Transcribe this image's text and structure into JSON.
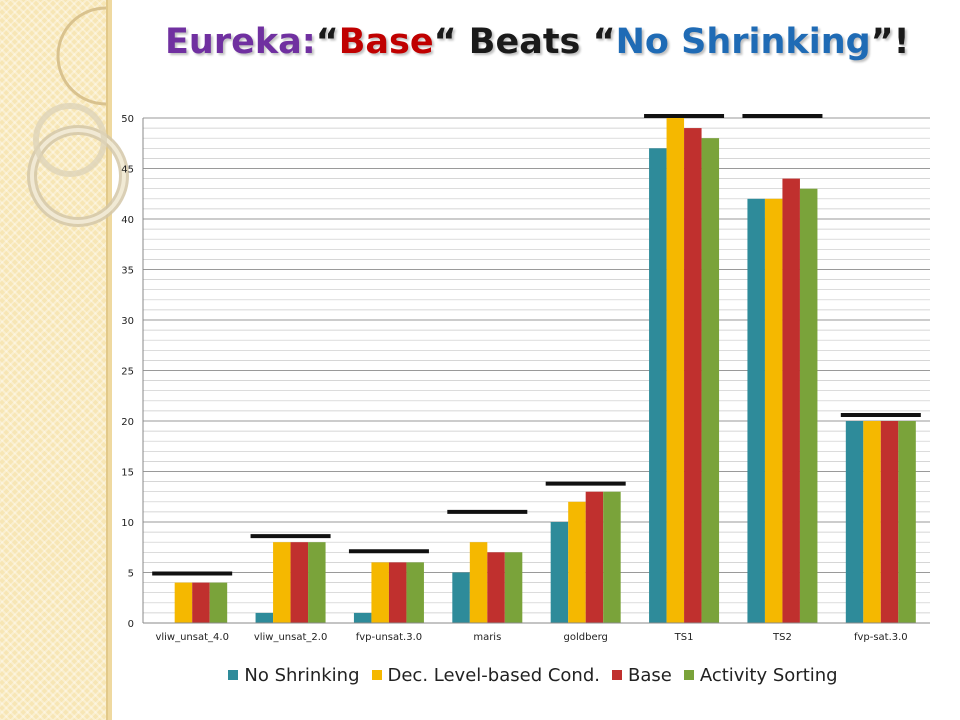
{
  "title": {
    "part1": "Eureka:",
    "part2": "“",
    "part3": "Base",
    "part4": "“ Beats “",
    "part5": "No Shrinking",
    "part6": "”!",
    "colors": {
      "eureka": "#7030a0",
      "base": "#c00000",
      "dark": "#1a1a1a",
      "noshrink": "#1f6bb5"
    }
  },
  "legend_items": [
    "No Shrinking",
    "Dec. Level-based Cond.",
    "Base",
    "Activity Sorting"
  ],
  "chart_data": {
    "type": "bar",
    "title": "",
    "xlabel": "",
    "ylabel": "",
    "ylim": [
      0,
      50
    ],
    "yticks": [
      0,
      5,
      10,
      15,
      20,
      25,
      30,
      35,
      40,
      45,
      50
    ],
    "grid": true,
    "legend_position": "bottom",
    "categories": [
      "vliw_unsat_4.0",
      "vliw_unsat_2.0",
      "fvp-unsat.3.0",
      "maris",
      "goldberg",
      "TS1",
      "TS2",
      "fvp-sat.3.0"
    ],
    "series": [
      {
        "name": "No Shrinking",
        "color": "#2e8b9a",
        "values": [
          0,
          1,
          1,
          5,
          10,
          47,
          42,
          20
        ]
      },
      {
        "name": "Dec. Level-based Cond.",
        "color": "#f5b800",
        "values": [
          4,
          8,
          6,
          8,
          12,
          50,
          42,
          20
        ]
      },
      {
        "name": "Base",
        "color": "#c0302e",
        "values": [
          4,
          8,
          6,
          7,
          13,
          49,
          44,
          20
        ]
      },
      {
        "name": "Activity Sorting",
        "color": "#7aa33a",
        "values": [
          4,
          8,
          6,
          7,
          13,
          48,
          43,
          20
        ]
      }
    ],
    "reference_markers": [
      4.9,
      8.6,
      7.1,
      11.0,
      13.8,
      50.2,
      50.2,
      20.6
    ]
  }
}
